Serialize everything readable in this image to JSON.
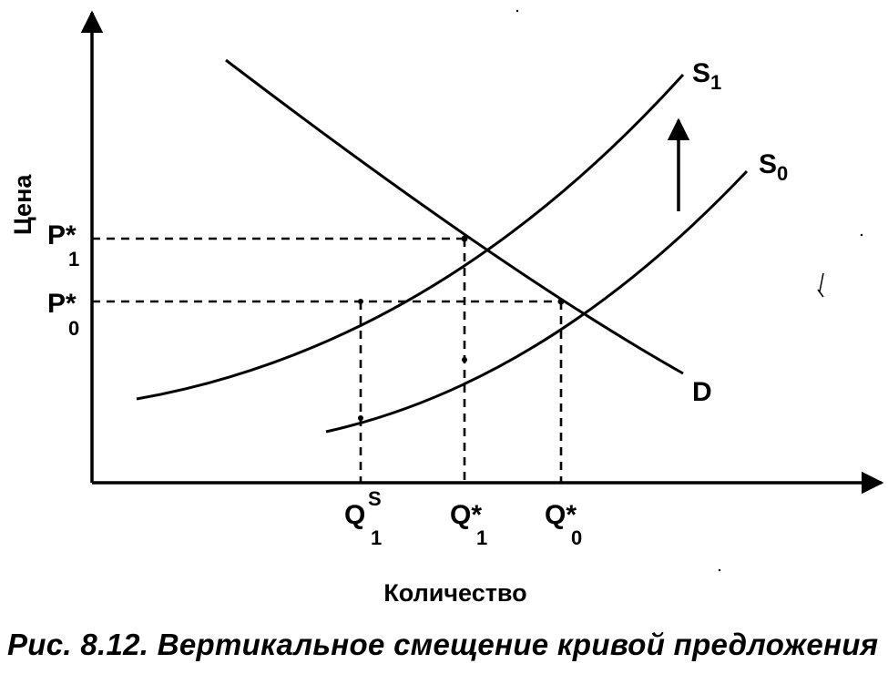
{
  "axes": {
    "y_label": "Цена",
    "x_label": "Количество"
  },
  "curves": {
    "s1": {
      "letter": "S",
      "sub": "1"
    },
    "s0": {
      "letter": "S",
      "sub": "0"
    },
    "d": {
      "letter": "D"
    }
  },
  "price_labels": {
    "p1": {
      "main": "P*",
      "sub": "1"
    },
    "p0": {
      "main": "P*",
      "sub": "0"
    }
  },
  "quantity_labels": {
    "qs1": {
      "main": "Q",
      "sup": "S",
      "sub": "1"
    },
    "q1": {
      "main": "Q*",
      "sub": "1"
    },
    "q0": {
      "main": "Q*",
      "sub": "0"
    }
  },
  "caption": "Рис. 8.12. Вертикальное смещение кривой предложения",
  "colors": {
    "ink": "#000000",
    "background": "#ffffff"
  }
}
